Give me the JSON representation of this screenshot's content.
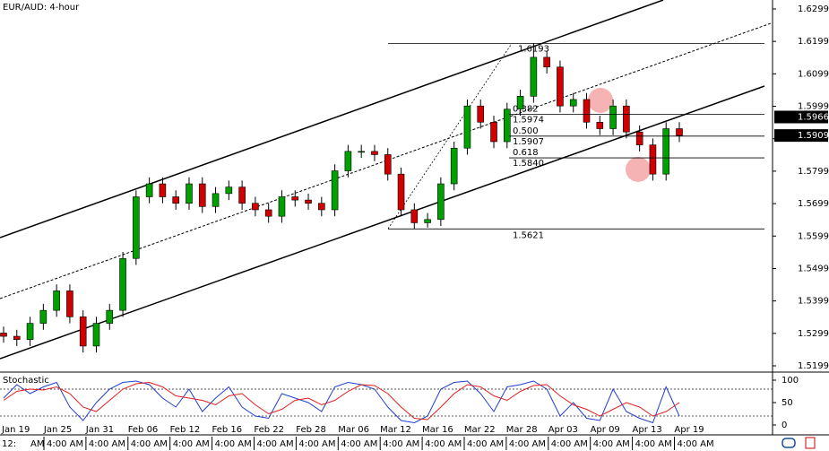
{
  "chart_data": {
    "type": "candlestick",
    "title": "EUR/AUD: 4-hour",
    "open": [
      1.53,
      1.529,
      1.528,
      1.533,
      1.537,
      1.543,
      1.535,
      1.526,
      1.533,
      1.537,
      1.553,
      1.572,
      1.576,
      1.572,
      1.57,
      1.576,
      1.569,
      1.573,
      1.575,
      1.57,
      1.568,
      1.566,
      1.572,
      1.571,
      1.57,
      1.568,
      1.58,
      1.586,
      1.586,
      1.585,
      1.579,
      1.568,
      1.564,
      1.565,
      1.576,
      1.587,
      1.6,
      1.595,
      1.589,
      1.599,
      1.603,
      1.615,
      1.612,
      1.6,
      1.602,
      1.595,
      1.593,
      1.6,
      1.592,
      1.588,
      1.579,
      1.593
    ],
    "high": [
      1.532,
      1.531,
      1.535,
      1.539,
      1.545,
      1.545,
      1.537,
      1.535,
      1.539,
      1.555,
      1.574,
      1.578,
      1.578,
      1.574,
      1.578,
      1.578,
      1.575,
      1.577,
      1.577,
      1.572,
      1.57,
      1.574,
      1.574,
      1.573,
      1.572,
      1.582,
      1.588,
      1.588,
      1.588,
      1.587,
      1.581,
      1.57,
      1.567,
      1.578,
      1.589,
      1.602,
      1.602,
      1.597,
      1.601,
      1.605,
      1.6193,
      1.617,
      1.614,
      1.604,
      1.604,
      1.597,
      1.602,
      1.602,
      1.594,
      1.59,
      1.595,
      1.595
    ],
    "low": [
      1.527,
      1.526,
      1.526,
      1.531,
      1.535,
      1.533,
      1.524,
      1.524,
      1.531,
      1.535,
      1.551,
      1.57,
      1.57,
      1.568,
      1.568,
      1.567,
      1.567,
      1.571,
      1.568,
      1.566,
      1.564,
      1.564,
      1.569,
      1.568,
      1.566,
      1.566,
      1.578,
      1.584,
      1.583,
      1.577,
      1.566,
      1.5621,
      1.5625,
      1.563,
      1.574,
      1.585,
      1.593,
      1.587,
      1.587,
      1.597,
      1.601,
      1.61,
      1.598,
      1.598,
      1.593,
      1.591,
      1.591,
      1.59,
      1.586,
      1.577,
      1.577,
      1.5889
    ],
    "close": [
      1.529,
      1.528,
      1.533,
      1.537,
      1.543,
      1.535,
      1.526,
      1.533,
      1.537,
      1.553,
      1.572,
      1.576,
      1.572,
      1.57,
      1.576,
      1.569,
      1.573,
      1.575,
      1.57,
      1.568,
      1.566,
      1.572,
      1.571,
      1.57,
      1.568,
      1.58,
      1.586,
      1.586,
      1.585,
      1.579,
      1.568,
      1.564,
      1.565,
      1.576,
      1.587,
      1.6,
      1.595,
      1.589,
      1.599,
      1.603,
      1.615,
      1.612,
      1.6,
      1.602,
      1.595,
      1.593,
      1.6,
      1.592,
      1.588,
      1.579,
      1.593,
      1.5909
    ],
    "up_color": "#00a000",
    "down_color": "#d00000",
    "ylim": [
      1.5199,
      1.6299
    ],
    "yticks": [
      1.6299,
      1.6199,
      1.6099,
      1.5999,
      1.5899,
      1.5799,
      1.5699,
      1.5599,
      1.5499,
      1.5399,
      1.5299,
      1.5199
    ],
    "price_tags": [
      1.5966,
      1.5909
    ],
    "fib": {
      "high": 1.6193,
      "low": 1.5621,
      "levels": [
        {
          "ratio": 0.382,
          "price": 1.5974
        },
        {
          "ratio": {
            "value": 0.5,
            "label": "0.500"
          },
          "price": 1.5907
        },
        {
          "ratio": 0.618,
          "price": {
            "value": 1.584,
            "label": "1.5840"
          }
        }
      ]
    },
    "stochastic": {
      "title": "Stochastic",
      "ylim": [
        0,
        100
      ],
      "yticks": [
        100,
        50,
        0
      ],
      "levels": [
        80,
        20
      ],
      "series": [
        {
          "color": "#1f3fd0",
          "values": [
            60,
            90,
            70,
            85,
            95,
            40,
            10,
            50,
            80,
            95,
            98,
            90,
            60,
            40,
            80,
            30,
            60,
            85,
            40,
            20,
            15,
            70,
            60,
            50,
            30,
            85,
            95,
            90,
            80,
            40,
            10,
            5,
            20,
            80,
            95,
            98,
            70,
            30,
            85,
            90,
            98,
            80,
            20,
            50,
            15,
            10,
            80,
            30,
            15,
            5,
            85,
            20
          ]
        },
        {
          "color": "#e02020",
          "values": [
            55,
            75,
            80,
            78,
            85,
            70,
            40,
            30,
            55,
            80,
            92,
            95,
            85,
            65,
            60,
            55,
            45,
            65,
            70,
            45,
            25,
            35,
            55,
            60,
            45,
            55,
            75,
            90,
            88,
            70,
            40,
            15,
            12,
            40,
            70,
            90,
            85,
            65,
            55,
            75,
            88,
            90,
            65,
            45,
            35,
            20,
            35,
            50,
            40,
            20,
            30,
            50
          ]
        }
      ]
    },
    "x_labels": [
      "Jan 19",
      "Jan 25",
      "Jan 31",
      "Feb 06",
      "Feb 12",
      "Feb 16",
      "Feb 22",
      "Feb 28",
      "Mar 06",
      "Mar 12",
      "Mar 16",
      "Mar 22",
      "Mar 28",
      "Apr 03",
      "Apr 09",
      "Apr 13",
      "Apr 19"
    ],
    "time_labels": [
      "12:",
      "AM",
      "4:00 AM",
      "4:00 AM",
      "4:00 AM",
      "4:00 AM",
      "4:00 AM",
      "4:00 AM",
      "4:00 AM",
      "4:00 AM",
      "4:00 AM",
      "4:00 AM",
      "4:00 AM",
      "4:00 AM",
      "4:00 AM",
      "4:00 AM",
      "4:00 AM",
      "4:00 AM"
    ]
  }
}
